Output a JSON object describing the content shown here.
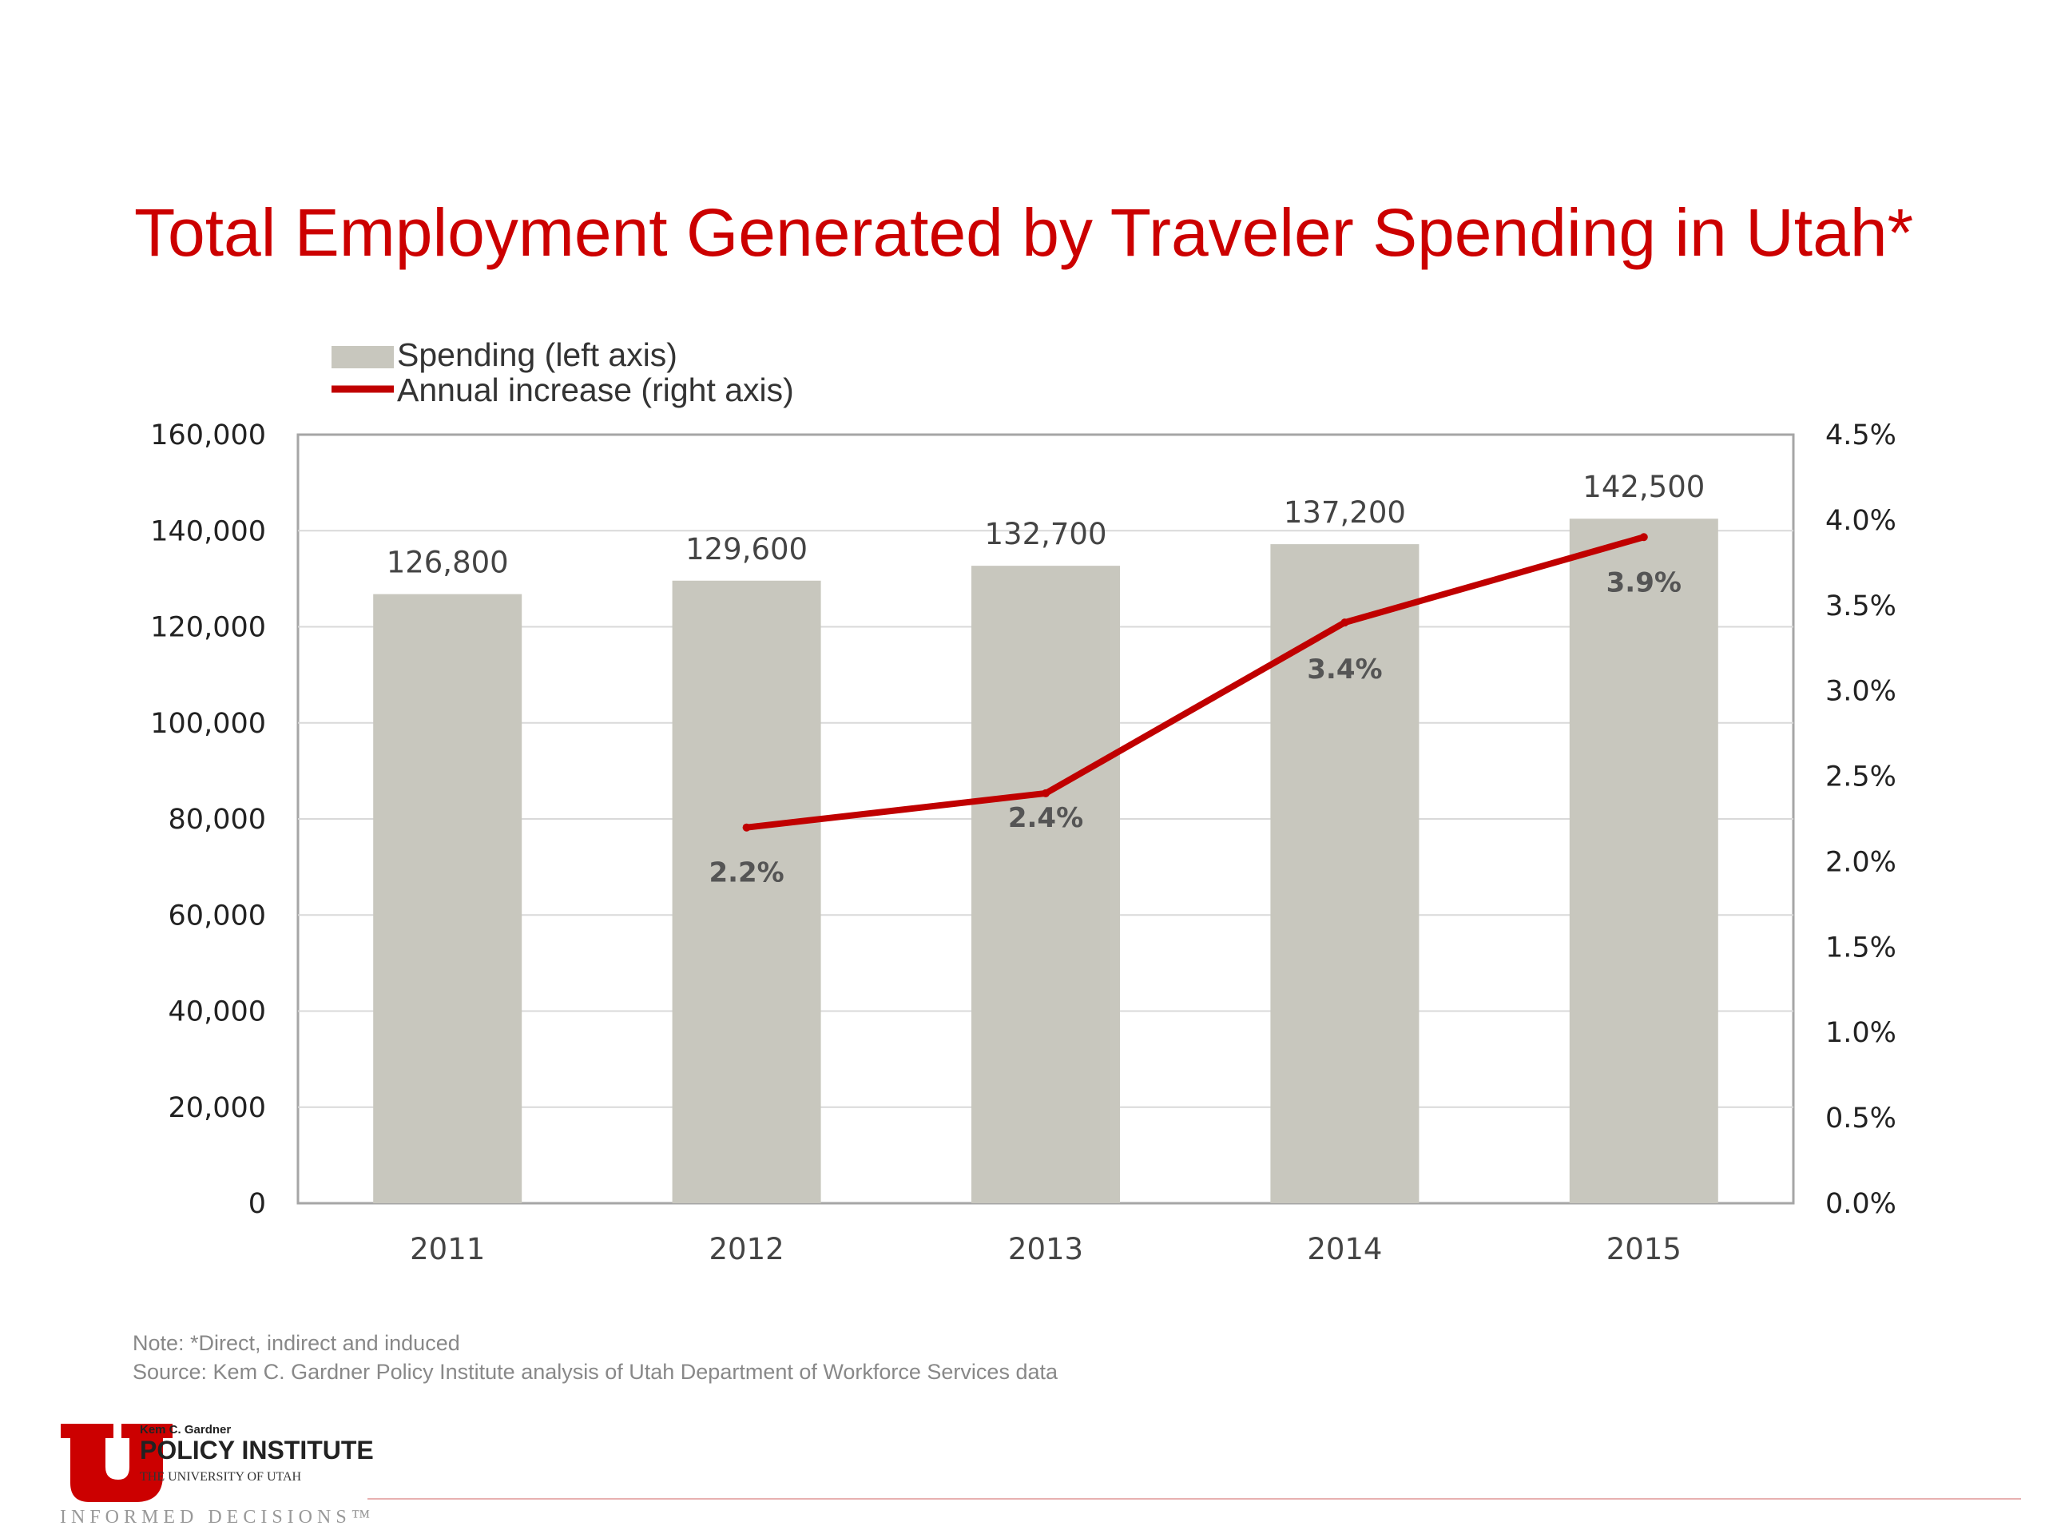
{
  "colors": {
    "accent": "#cc0000",
    "bar": "#c8c7be",
    "line": "#c00000",
    "grid": "#d9d9d9",
    "frame": "#a6a6a6",
    "footer_rule": "#e8b0b0"
  },
  "chart_data": {
    "type": "bar",
    "title": "Total Employment Generated by Traveler Spending in Utah*",
    "categories": [
      "2011",
      "2012",
      "2013",
      "2014",
      "2015"
    ],
    "series": [
      {
        "name": "Spending (left axis)",
        "type": "bar",
        "axis": "left",
        "values": [
          126800,
          129600,
          132700,
          137200,
          142500
        ],
        "labels": [
          "126,800",
          "129,600",
          "132,700",
          "137,200",
          "142,500"
        ]
      },
      {
        "name": "Annual increase (right axis)",
        "type": "line",
        "axis": "right",
        "values": [
          null,
          2.2,
          2.4,
          3.4,
          3.9
        ],
        "labels": [
          null,
          "2.2%",
          "2.4%",
          "3.4%",
          "3.9%"
        ]
      }
    ],
    "left_axis": {
      "min": 0,
      "max": 160000,
      "ticks": [
        "0",
        "20,000",
        "40,000",
        "60,000",
        "80,000",
        "100,000",
        "120,000",
        "140,000",
        "160,000"
      ]
    },
    "right_axis": {
      "min": 0,
      "max": 4.5,
      "ticks": [
        "0.0%",
        "0.5%",
        "1.0%",
        "1.5%",
        "2.0%",
        "2.5%",
        "3.0%",
        "3.5%",
        "4.0%",
        "4.5%"
      ]
    },
    "grid": true,
    "legend_position": "top-left"
  },
  "footer": {
    "note": "Note: *Direct, indirect and induced",
    "source": "Source: Kem C. Gardner Policy Institute analysis of Utah Department of Workforce Services data"
  },
  "logo": {
    "name_small": "Kem C. Gardner",
    "name_main": "POLICY INSTITUTE",
    "university": "THE UNIVERSITY OF UTAH",
    "tagline": "INFORMED DECISIONS™"
  }
}
